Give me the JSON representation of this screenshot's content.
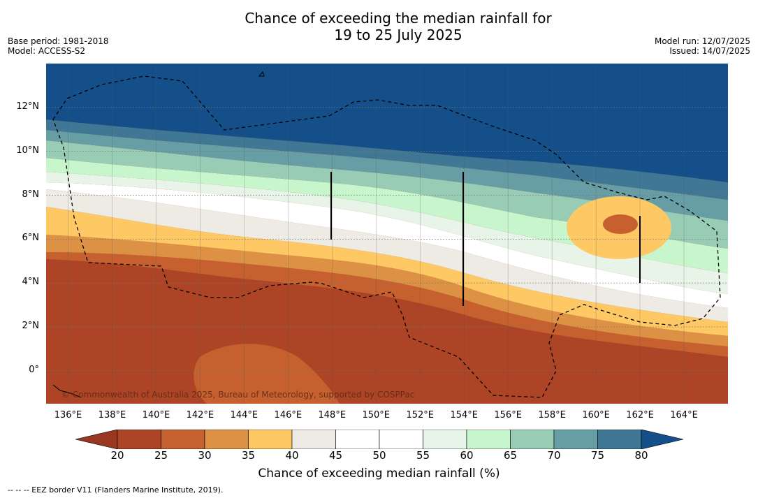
{
  "title": {
    "line1": "Chance of exceeding the median rainfall for",
    "line2": "19 to 25 July 2025"
  },
  "meta_left": {
    "base_period": "Base period: 1981-2018",
    "model": "Model: ACCESS-S2"
  },
  "meta_right": {
    "model_run": "Model run: 12/07/2025",
    "issued": "Issued: 14/07/2025"
  },
  "map": {
    "lon_range": [
      135,
      166
    ],
    "lat_range": [
      -1.5,
      14
    ],
    "lat_ticks": [
      {
        "value": 12,
        "label": "12°N"
      },
      {
        "value": 10,
        "label": "10°N"
      },
      {
        "value": 8,
        "label": "8°N"
      },
      {
        "value": 6,
        "label": "6°N"
      },
      {
        "value": 4,
        "label": "4°N"
      },
      {
        "value": 2,
        "label": "2°N"
      },
      {
        "value": 0,
        "label": "0°"
      }
    ],
    "lon_ticks": [
      {
        "value": 136,
        "label": "136°E"
      },
      {
        "value": 138,
        "label": "138°E"
      },
      {
        "value": 140,
        "label": "140°E"
      },
      {
        "value": 142,
        "label": "142°E"
      },
      {
        "value": 144,
        "label": "144°E"
      },
      {
        "value": 146,
        "label": "146°E"
      },
      {
        "value": 148,
        "label": "148°E"
      },
      {
        "value": 150,
        "label": "150°E"
      },
      {
        "value": 152,
        "label": "152°E"
      },
      {
        "value": 154,
        "label": "154°E"
      },
      {
        "value": 156,
        "label": "156°E"
      },
      {
        "value": 158,
        "label": "158°E"
      },
      {
        "value": 160,
        "label": "160°E"
      },
      {
        "value": 162,
        "label": "162°E"
      },
      {
        "value": 164,
        "label": "164°E"
      }
    ],
    "copyright": "© Commonwealth of Australia 2025, Bureau of Meteorology, supported by COSPPac"
  },
  "colorbar": {
    "label": "Chance of exceeding median rainfall (%)",
    "ticks": [
      "20",
      "25",
      "30",
      "35",
      "40",
      "45",
      "50",
      "55",
      "60",
      "65",
      "70",
      "75",
      "80"
    ],
    "under_color": "#9a3720",
    "over_color": "#154f8a",
    "colors": [
      "#ad4425",
      "#c6602f",
      "#dd9145",
      "#fec865",
      "#eeebe4",
      "#ffffff",
      "#ffffff",
      "#e8f4e8",
      "#c7f6cc",
      "#98ccb5",
      "#679ea5",
      "#3f7795"
    ]
  },
  "footnote": "--  --  -- EEZ border V11 (Flanders Marine Institute, 2019)."
}
